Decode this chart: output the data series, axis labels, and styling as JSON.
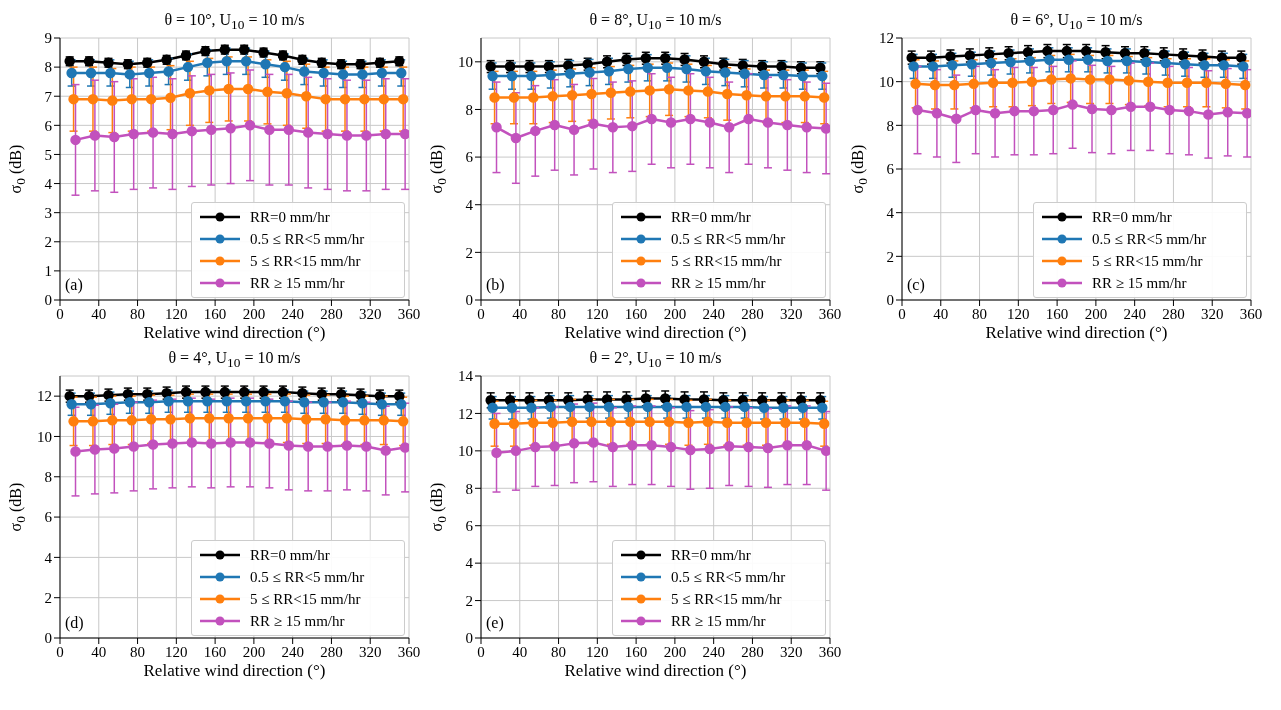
{
  "chart_data": [
    {
      "type": "line",
      "title": "θ = 10°, U$_{10}$ = 10 m/s",
      "xlabel": "Relative wind direction (°)",
      "ylabel": "σ$_{0}$ (dB)",
      "xlim": [
        0,
        360
      ],
      "xticks": [
        0,
        40,
        80,
        120,
        160,
        200,
        240,
        280,
        320,
        360
      ],
      "ylim": [
        0,
        9
      ],
      "yticks": [
        0,
        1,
        2,
        3,
        4,
        5,
        6,
        7,
        8,
        9
      ],
      "grid": true,
      "legend": "bottom right",
      "marker": "circle",
      "annotations": [
        "(a)"
      ],
      "series": [
        {
          "name": "RR=0 mm/hr",
          "color": "#000000",
          "x": [
            10,
            30,
            50,
            70,
            90,
            110,
            130,
            150,
            170,
            190,
            210,
            230,
            250,
            270,
            290,
            310,
            330,
            350
          ],
          "values": [
            8.2,
            8.2,
            8.15,
            8.1,
            8.15,
            8.25,
            8.4,
            8.55,
            8.6,
            8.6,
            8.5,
            8.4,
            8.25,
            8.15,
            8.1,
            8.1,
            8.15,
            8.2
          ],
          "errors": [
            0.15,
            0.15,
            0.15,
            0.15,
            0.15,
            0.15,
            0.15,
            0.15,
            0.15,
            0.15,
            0.15,
            0.15,
            0.15,
            0.15,
            0.15,
            0.15,
            0.15,
            0.15
          ]
        },
        {
          "name": "0.5 ≤ RR<5 mm/hr",
          "color": "#1f77b4",
          "x": [
            12,
            32,
            52,
            72,
            92,
            112,
            132,
            152,
            172,
            192,
            212,
            232,
            252,
            272,
            292,
            312,
            332,
            352
          ],
          "values": [
            7.8,
            7.8,
            7.8,
            7.75,
            7.8,
            7.85,
            8.0,
            8.15,
            8.2,
            8.2,
            8.1,
            8.0,
            7.85,
            7.8,
            7.75,
            7.75,
            7.8,
            7.8
          ],
          "errors": [
            0.45,
            0.45,
            0.45,
            0.45,
            0.45,
            0.45,
            0.45,
            0.45,
            0.45,
            0.45,
            0.45,
            0.45,
            0.45,
            0.45,
            0.45,
            0.45,
            0.45,
            0.45
          ]
        },
        {
          "name": "5 ≤ RR<15 mm/hr",
          "color": "#ff7f0e",
          "x": [
            14,
            34,
            54,
            74,
            94,
            114,
            134,
            154,
            174,
            194,
            214,
            234,
            254,
            274,
            294,
            314,
            334,
            354
          ],
          "values": [
            6.9,
            6.9,
            6.85,
            6.9,
            6.9,
            6.95,
            7.1,
            7.2,
            7.25,
            7.25,
            7.15,
            7.1,
            7.0,
            6.9,
            6.9,
            6.9,
            6.9,
            6.9
          ],
          "errors": [
            1.1,
            1.1,
            1.1,
            1.1,
            1.1,
            1.1,
            1.1,
            1.1,
            1.1,
            1.1,
            1.1,
            1.1,
            1.1,
            1.1,
            1.1,
            1.1,
            1.1,
            1.1
          ]
        },
        {
          "name": "RR ≥ 15 mm/hr",
          "color": "#c251bd",
          "x": [
            16,
            36,
            56,
            76,
            96,
            116,
            136,
            156,
            176,
            196,
            216,
            236,
            256,
            276,
            296,
            316,
            336,
            356
          ],
          "values": [
            5.5,
            5.65,
            5.6,
            5.7,
            5.75,
            5.7,
            5.8,
            5.85,
            5.9,
            6.0,
            5.85,
            5.85,
            5.75,
            5.7,
            5.65,
            5.65,
            5.7,
            5.7
          ],
          "errors": [
            1.9,
            1.9,
            1.9,
            1.9,
            1.9,
            1.9,
            1.9,
            1.9,
            1.9,
            1.9,
            1.9,
            1.9,
            1.9,
            1.9,
            1.9,
            1.9,
            1.9,
            1.9
          ]
        }
      ]
    },
    {
      "type": "line",
      "title": "θ = 8°, U$_{10}$ = 10 m/s",
      "xlabel": "Relative wind direction (°)",
      "ylabel": "σ$_{0}$ (dB)",
      "xlim": [
        0,
        360
      ],
      "xticks": [
        0,
        40,
        80,
        120,
        160,
        200,
        240,
        280,
        320,
        360
      ],
      "ylim": [
        0,
        11
      ],
      "yticks": [
        0,
        2,
        4,
        6,
        8,
        10
      ],
      "grid": true,
      "legend": "bottom right",
      "marker": "circle",
      "annotations": [
        "(b)"
      ],
      "series": [
        {
          "name": "RR=0 mm/hr",
          "color": "#000000",
          "x": [
            10,
            30,
            50,
            70,
            90,
            110,
            130,
            150,
            170,
            190,
            210,
            230,
            250,
            270,
            290,
            310,
            330,
            350
          ],
          "values": [
            9.8,
            9.8,
            9.8,
            9.8,
            9.85,
            9.9,
            10.0,
            10.1,
            10.15,
            10.15,
            10.1,
            10.0,
            9.9,
            9.85,
            9.8,
            9.8,
            9.75,
            9.75
          ],
          "errors": [
            0.25,
            0.25,
            0.25,
            0.25,
            0.25,
            0.25,
            0.25,
            0.25,
            0.25,
            0.25,
            0.25,
            0.25,
            0.25,
            0.25,
            0.25,
            0.25,
            0.25,
            0.25
          ]
        },
        {
          "name": "0.5 ≤ RR<5 mm/hr",
          "color": "#1f77b4",
          "x": [
            12,
            32,
            52,
            72,
            92,
            112,
            132,
            152,
            172,
            192,
            212,
            232,
            252,
            272,
            292,
            312,
            332,
            352
          ],
          "values": [
            9.4,
            9.4,
            9.4,
            9.45,
            9.5,
            9.55,
            9.6,
            9.7,
            9.75,
            9.75,
            9.7,
            9.6,
            9.55,
            9.5,
            9.45,
            9.45,
            9.4,
            9.4
          ],
          "errors": [
            0.55,
            0.55,
            0.55,
            0.55,
            0.55,
            0.55,
            0.55,
            0.55,
            0.55,
            0.55,
            0.55,
            0.55,
            0.55,
            0.55,
            0.55,
            0.55,
            0.55,
            0.55
          ]
        },
        {
          "name": "5 ≤ RR<15 mm/hr",
          "color": "#ff7f0e",
          "x": [
            14,
            34,
            54,
            74,
            94,
            114,
            134,
            154,
            174,
            194,
            214,
            234,
            254,
            274,
            294,
            314,
            334,
            354
          ],
          "values": [
            8.5,
            8.5,
            8.5,
            8.55,
            8.6,
            8.65,
            8.7,
            8.75,
            8.8,
            8.85,
            8.8,
            8.75,
            8.65,
            8.6,
            8.55,
            8.55,
            8.55,
            8.5
          ],
          "errors": [
            1.1,
            1.1,
            1.1,
            1.1,
            1.1,
            1.1,
            1.1,
            1.1,
            1.1,
            1.1,
            1.1,
            1.1,
            1.1,
            1.1,
            1.1,
            1.1,
            1.1,
            1.1
          ]
        },
        {
          "name": "RR ≥ 15 mm/hr",
          "color": "#c251bd",
          "x": [
            16,
            36,
            56,
            76,
            96,
            116,
            136,
            156,
            176,
            196,
            216,
            236,
            256,
            276,
            296,
            316,
            336,
            356
          ],
          "values": [
            7.25,
            6.8,
            7.1,
            7.35,
            7.15,
            7.4,
            7.25,
            7.3,
            7.6,
            7.45,
            7.6,
            7.45,
            7.25,
            7.6,
            7.45,
            7.35,
            7.25,
            7.2
          ],
          "errors": [
            1.9,
            1.9,
            1.9,
            1.9,
            1.9,
            1.9,
            1.9,
            1.9,
            1.9,
            1.9,
            1.9,
            1.9,
            1.9,
            1.9,
            1.9,
            1.9,
            1.9,
            1.9
          ]
        }
      ]
    },
    {
      "type": "line",
      "title": "θ = 6°, U$_{10}$ = 10 m/s",
      "xlabel": "Relative wind direction (°)",
      "ylabel": "σ$_{0}$ (dB)",
      "xlim": [
        0,
        360
      ],
      "xticks": [
        0,
        40,
        80,
        120,
        160,
        200,
        240,
        280,
        320,
        360
      ],
      "ylim": [
        0,
        12
      ],
      "yticks": [
        0,
        2,
        4,
        6,
        8,
        10,
        12
      ],
      "grid": true,
      "legend": "bottom right",
      "marker": "circle",
      "annotations": [
        "(c)"
      ],
      "series": [
        {
          "name": "RR=0 mm/hr",
          "color": "#000000",
          "x": [
            10,
            30,
            50,
            70,
            90,
            110,
            130,
            150,
            170,
            190,
            210,
            230,
            250,
            270,
            290,
            310,
            330,
            350
          ],
          "values": [
            11.1,
            11.1,
            11.15,
            11.2,
            11.25,
            11.3,
            11.35,
            11.4,
            11.4,
            11.4,
            11.35,
            11.3,
            11.3,
            11.25,
            11.2,
            11.15,
            11.1,
            11.1
          ],
          "errors": [
            0.3,
            0.3,
            0.3,
            0.3,
            0.3,
            0.3,
            0.3,
            0.3,
            0.3,
            0.3,
            0.3,
            0.3,
            0.3,
            0.3,
            0.3,
            0.3,
            0.3,
            0.3
          ]
        },
        {
          "name": "0.5 ≤ RR<5 mm/hr",
          "color": "#1f77b4",
          "x": [
            12,
            32,
            52,
            72,
            92,
            112,
            132,
            152,
            172,
            192,
            212,
            232,
            252,
            272,
            292,
            312,
            332,
            352
          ],
          "values": [
            10.7,
            10.7,
            10.75,
            10.8,
            10.85,
            10.9,
            10.95,
            11.0,
            11.0,
            11.0,
            10.95,
            10.95,
            10.9,
            10.85,
            10.8,
            10.75,
            10.75,
            10.7
          ],
          "errors": [
            0.55,
            0.55,
            0.55,
            0.55,
            0.55,
            0.55,
            0.55,
            0.55,
            0.55,
            0.55,
            0.55,
            0.55,
            0.55,
            0.55,
            0.55,
            0.55,
            0.55,
            0.55
          ]
        },
        {
          "name": "5 ≤ RR<15 mm/hr",
          "color": "#ff7f0e",
          "x": [
            14,
            34,
            54,
            74,
            94,
            114,
            134,
            154,
            174,
            194,
            214,
            234,
            254,
            274,
            294,
            314,
            334,
            354
          ],
          "values": [
            9.9,
            9.85,
            9.85,
            9.9,
            9.95,
            9.95,
            10.0,
            10.1,
            10.15,
            10.1,
            10.1,
            10.05,
            10.0,
            9.95,
            9.95,
            9.95,
            9.9,
            9.85
          ],
          "errors": [
            1.1,
            1.1,
            1.1,
            1.1,
            1.1,
            1.1,
            1.1,
            1.1,
            1.1,
            1.1,
            1.1,
            1.1,
            1.1,
            1.1,
            1.1,
            1.1,
            1.1,
            1.1
          ]
        },
        {
          "name": "RR ≥ 15 mm/hr",
          "color": "#c251bd",
          "x": [
            16,
            36,
            56,
            76,
            96,
            116,
            136,
            156,
            176,
            196,
            216,
            236,
            256,
            276,
            296,
            316,
            336,
            356
          ],
          "values": [
            8.7,
            8.55,
            8.3,
            8.7,
            8.55,
            8.65,
            8.65,
            8.7,
            8.95,
            8.75,
            8.7,
            8.85,
            8.85,
            8.7,
            8.65,
            8.5,
            8.6,
            8.55
          ],
          "errors": [
            2.0,
            2.0,
            2.0,
            2.0,
            2.0,
            2.0,
            2.0,
            2.0,
            2.0,
            2.0,
            2.0,
            2.0,
            2.0,
            2.0,
            2.0,
            2.0,
            2.0,
            2.0
          ]
        }
      ]
    },
    {
      "type": "line",
      "title": "θ = 4°, U$_{10}$ = 10 m/s",
      "xlabel": "Relative wind direction (°)",
      "ylabel": "σ$_{0}$ (dB)",
      "xlim": [
        0,
        360
      ],
      "xticks": [
        0,
        40,
        80,
        120,
        160,
        200,
        240,
        280,
        320,
        360
      ],
      "ylim": [
        0,
        13
      ],
      "yticks": [
        0,
        2,
        4,
        6,
        8,
        10,
        12
      ],
      "grid": true,
      "legend": "bottom right",
      "marker": "circle",
      "annotations": [
        "(d)"
      ],
      "series": [
        {
          "name": "RR=0 mm/hr",
          "color": "#000000",
          "x": [
            10,
            30,
            50,
            70,
            90,
            110,
            130,
            150,
            170,
            190,
            210,
            230,
            250,
            270,
            290,
            310,
            330,
            350
          ],
          "values": [
            12.0,
            12.0,
            12.05,
            12.1,
            12.1,
            12.15,
            12.2,
            12.2,
            12.2,
            12.2,
            12.2,
            12.2,
            12.15,
            12.1,
            12.1,
            12.05,
            12.0,
            12.0
          ],
          "errors": [
            0.3,
            0.3,
            0.3,
            0.3,
            0.3,
            0.3,
            0.3,
            0.3,
            0.3,
            0.3,
            0.3,
            0.3,
            0.3,
            0.3,
            0.3,
            0.3,
            0.3,
            0.3
          ]
        },
        {
          "name": "0.5 ≤ RR<5 mm/hr",
          "color": "#1f77b4",
          "x": [
            12,
            32,
            52,
            72,
            92,
            112,
            132,
            152,
            172,
            192,
            212,
            232,
            252,
            272,
            292,
            312,
            332,
            352
          ],
          "values": [
            11.6,
            11.6,
            11.65,
            11.7,
            11.7,
            11.75,
            11.75,
            11.75,
            11.75,
            11.75,
            11.75,
            11.75,
            11.7,
            11.7,
            11.7,
            11.65,
            11.6,
            11.6
          ],
          "errors": [
            0.55,
            0.55,
            0.55,
            0.55,
            0.55,
            0.55,
            0.55,
            0.55,
            0.55,
            0.55,
            0.55,
            0.55,
            0.55,
            0.55,
            0.55,
            0.55,
            0.55,
            0.55
          ]
        },
        {
          "name": "5 ≤ RR<15 mm/hr",
          "color": "#ff7f0e",
          "x": [
            14,
            34,
            54,
            74,
            94,
            114,
            134,
            154,
            174,
            194,
            214,
            234,
            254,
            274,
            294,
            314,
            334,
            354
          ],
          "values": [
            10.75,
            10.75,
            10.8,
            10.8,
            10.85,
            10.85,
            10.9,
            10.9,
            10.9,
            10.9,
            10.9,
            10.9,
            10.85,
            10.85,
            10.8,
            10.8,
            10.8,
            10.75
          ],
          "errors": [
            1.2,
            1.2,
            1.2,
            1.2,
            1.2,
            1.2,
            1.2,
            1.2,
            1.2,
            1.2,
            1.2,
            1.2,
            1.2,
            1.2,
            1.2,
            1.2,
            1.2,
            1.2
          ]
        },
        {
          "name": "RR ≥ 15 mm/hr",
          "color": "#c251bd",
          "x": [
            16,
            36,
            56,
            76,
            96,
            116,
            136,
            156,
            176,
            196,
            216,
            236,
            256,
            276,
            296,
            316,
            336,
            356
          ],
          "values": [
            9.25,
            9.35,
            9.4,
            9.5,
            9.6,
            9.65,
            9.7,
            9.65,
            9.7,
            9.7,
            9.65,
            9.55,
            9.5,
            9.5,
            9.55,
            9.5,
            9.3,
            9.45
          ],
          "errors": [
            2.2,
            2.2,
            2.2,
            2.2,
            2.2,
            2.2,
            2.2,
            2.2,
            2.2,
            2.2,
            2.2,
            2.2,
            2.2,
            2.2,
            2.2,
            2.2,
            2.2,
            2.2
          ]
        }
      ]
    },
    {
      "type": "line",
      "title": "θ = 2°, U$_{10}$ = 10 m/s",
      "xlabel": "Relative wind direction (°)",
      "ylabel": "σ$_{0}$ (dB)",
      "xlim": [
        0,
        360
      ],
      "xticks": [
        0,
        40,
        80,
        120,
        160,
        200,
        240,
        280,
        320,
        360
      ],
      "ylim": [
        0,
        14
      ],
      "yticks": [
        0,
        2,
        4,
        6,
        8,
        10,
        12,
        14
      ],
      "grid": true,
      "legend": "bottom right",
      "marker": "circle",
      "annotations": [
        "(e)"
      ],
      "series": [
        {
          "name": "RR=0 mm/hr",
          "color": "#000000",
          "x": [
            10,
            30,
            50,
            70,
            90,
            110,
            130,
            150,
            170,
            190,
            210,
            230,
            250,
            270,
            290,
            310,
            330,
            350
          ],
          "values": [
            12.7,
            12.7,
            12.7,
            12.7,
            12.7,
            12.75,
            12.75,
            12.75,
            12.8,
            12.8,
            12.75,
            12.75,
            12.7,
            12.7,
            12.7,
            12.7,
            12.7,
            12.7
          ],
          "errors": [
            0.4,
            0.4,
            0.4,
            0.4,
            0.4,
            0.4,
            0.4,
            0.4,
            0.4,
            0.4,
            0.4,
            0.4,
            0.4,
            0.4,
            0.4,
            0.4,
            0.4,
            0.4
          ]
        },
        {
          "name": "0.5 ≤ RR<5 mm/hr",
          "color": "#1f77b4",
          "x": [
            12,
            32,
            52,
            72,
            92,
            112,
            132,
            152,
            172,
            192,
            212,
            232,
            252,
            272,
            292,
            312,
            332,
            352
          ],
          "values": [
            12.3,
            12.3,
            12.3,
            12.35,
            12.35,
            12.35,
            12.35,
            12.35,
            12.35,
            12.35,
            12.35,
            12.35,
            12.35,
            12.35,
            12.3,
            12.3,
            12.3,
            12.3
          ],
          "errors": [
            0.6,
            0.6,
            0.6,
            0.6,
            0.6,
            0.6,
            0.6,
            0.6,
            0.6,
            0.6,
            0.6,
            0.6,
            0.6,
            0.6,
            0.6,
            0.6,
            0.6,
            0.6
          ]
        },
        {
          "name": "5 ≤ RR<15 mm/hr",
          "color": "#ff7f0e",
          "x": [
            14,
            34,
            54,
            74,
            94,
            114,
            134,
            154,
            174,
            194,
            214,
            234,
            254,
            274,
            294,
            314,
            334,
            354
          ],
          "values": [
            11.45,
            11.45,
            11.5,
            11.5,
            11.55,
            11.55,
            11.55,
            11.55,
            11.55,
            11.55,
            11.5,
            11.55,
            11.5,
            11.5,
            11.5,
            11.5,
            11.5,
            11.45
          ],
          "errors": [
            1.2,
            1.2,
            1.2,
            1.2,
            1.2,
            1.2,
            1.2,
            1.2,
            1.2,
            1.2,
            1.2,
            1.2,
            1.2,
            1.2,
            1.2,
            1.2,
            1.2,
            1.2
          ]
        },
        {
          "name": "RR ≥ 15 mm/hr",
          "color": "#c251bd",
          "x": [
            16,
            36,
            56,
            76,
            96,
            116,
            136,
            156,
            176,
            196,
            216,
            236,
            256,
            276,
            296,
            316,
            336,
            356
          ],
          "values": [
            9.9,
            10.0,
            10.2,
            10.25,
            10.4,
            10.45,
            10.2,
            10.3,
            10.3,
            10.2,
            10.05,
            10.1,
            10.25,
            10.2,
            10.15,
            10.3,
            10.3,
            10.0
          ],
          "errors": [
            2.1,
            2.1,
            2.1,
            2.1,
            2.1,
            2.1,
            2.1,
            2.1,
            2.1,
            2.1,
            2.1,
            2.1,
            2.1,
            2.1,
            2.1,
            2.1,
            2.1,
            2.1
          ]
        }
      ]
    }
  ]
}
